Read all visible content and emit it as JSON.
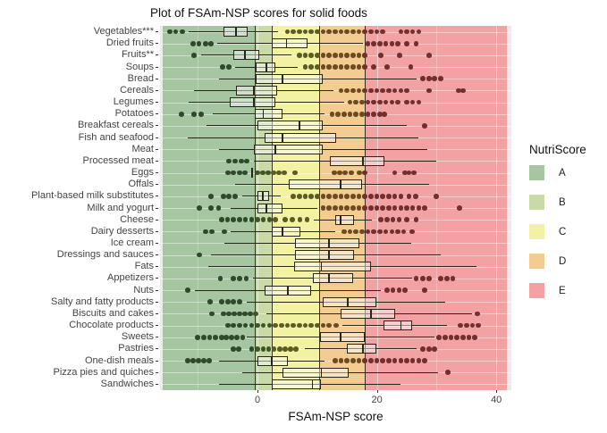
{
  "title": "Plot of FSAm-NSP scores for solid foods",
  "x_axis": {
    "label": "FSAm-NSP score",
    "ticks": [
      0,
      20,
      40
    ],
    "range": [
      -16.3,
      42.5
    ]
  },
  "legend": {
    "title": "NutriScore",
    "items": [
      {
        "label": "A",
        "color": "#a5c6a0"
      },
      {
        "label": "B",
        "color": "#c8dba6"
      },
      {
        "label": "C",
        "color": "#f2f2a2"
      },
      {
        "label": "D",
        "color": "#f2cc90"
      },
      {
        "label": "E",
        "color": "#f2a2a2"
      }
    ]
  },
  "bands": [
    {
      "grade": "A",
      "from": -15.9,
      "to": -0.52,
      "color": "#a5c6a0"
    },
    {
      "grade": "B",
      "from": -0.52,
      "to": 2.4,
      "color": "#c8dba6"
    },
    {
      "grade": "C",
      "from": 2.4,
      "to": 10.33,
      "color": "#f2f2a2"
    },
    {
      "grade": "D",
      "from": 10.33,
      "to": 17.96,
      "color": "#f2cc90"
    },
    {
      "grade": "E",
      "from": 17.96,
      "to": 41.77,
      "color": "#f2a2a2"
    }
  ],
  "dot_colors": {
    "A": "#2f4a2a",
    "B": "#3f5526",
    "C": "#5c5b22",
    "D": "#6d4a1f",
    "E": "#742f2c"
  },
  "chart_data": {
    "type": "boxplot-horizontal",
    "title": "Plot of FSAm-NSP scores for solid foods",
    "xlabel": "FSAm-NSP score",
    "xlim": [
      -16.3,
      42.5
    ],
    "grid": true,
    "legend_position": "right",
    "categories": [
      {
        "label": "Vegetables***",
        "box": [
          -11.5,
          -5.7,
          -3.6,
          -1.6,
          3.4
        ],
        "outliers": [
          -14.7,
          -13.7,
          -12.6,
          5,
          6,
          7,
          8,
          9,
          10,
          11,
          12,
          13,
          14,
          15,
          16,
          17,
          18,
          19,
          20,
          21,
          24,
          25,
          26,
          27
        ]
      },
      {
        "label": "Dried fruits",
        "box": [
          -6.7,
          2.4,
          4.9,
          8.4,
          17.7
        ],
        "outliers": [
          -10.8,
          -9.8,
          -8.7,
          -7.8,
          18.5,
          19.5,
          20.5,
          21.5,
          22.5,
          23.5,
          25,
          26.6
        ]
      },
      {
        "label": "Fruits**",
        "box": [
          -9.4,
          -4.0,
          -2.1,
          0.3,
          5.7
        ],
        "outliers": [
          -10.6,
          7,
          8,
          9,
          10,
          11,
          12,
          13,
          14,
          15,
          16,
          17,
          18,
          20.7,
          23.8,
          28.7
        ]
      },
      {
        "label": "Soups",
        "box": [
          -3.7,
          -0.3,
          1.5,
          3.0,
          6.7
        ],
        "outliers": [
          -5.8,
          -4.8,
          8,
          9,
          10,
          11,
          12,
          13,
          14,
          15,
          16,
          17,
          18,
          19.5,
          21.7,
          25.7
        ]
      },
      {
        "label": "Bread",
        "box": [
          -6.4,
          -0.3,
          4.2,
          10.9,
          26.6
        ],
        "outliers": [
          27.7,
          28.7,
          29.6,
          30.7
        ]
      },
      {
        "label": "Cereals",
        "box": [
          -10.6,
          -3.6,
          -0.6,
          3.3,
          12.7
        ],
        "outliers": [
          14,
          15,
          16,
          17,
          18,
          19,
          20,
          21,
          22,
          23,
          24,
          25,
          28.7,
          33.7,
          34.4
        ]
      },
      {
        "label": "Legumes",
        "box": [
          -11.5,
          -4.6,
          -0.6,
          3.0,
          14.5
        ],
        "outliers": [
          15.5,
          16.5,
          17.5,
          18.5,
          19.5,
          20.5,
          21.5,
          22.5,
          23.5,
          25,
          26,
          27
        ]
      },
      {
        "label": "Potatoes",
        "box": [
          -7.5,
          -0.4,
          1.0,
          4.2,
          11.2
        ],
        "outliers": [
          -12.7,
          -10.6,
          -9.4,
          12.5,
          13.5,
          14.5,
          15.5,
          16.5,
          17.5,
          18.5,
          19.5,
          20.5,
          21.3
        ]
      },
      {
        "label": "Breakfast cereals",
        "box": [
          -8.5,
          0.0,
          7.0,
          10.9,
          25.0
        ],
        "outliers": [
          28.0
        ]
      },
      {
        "label": "Fish and seafood",
        "box": [
          -11.7,
          1.2,
          4.2,
          13.2,
          26.9
        ],
        "outliers": []
      },
      {
        "label": "Meat",
        "box": [
          -6.4,
          -0.6,
          3.0,
          10.9,
          28.5
        ],
        "outliers": []
      },
      {
        "label": "Processed meat",
        "box": [
          -0.6,
          12.1,
          17.7,
          21.3,
          29.9
        ],
        "outliers": [
          -4.8,
          -3.7,
          -2.7,
          -1.8
        ]
      },
      {
        "label": "Eggs",
        "box": [
          -1.0,
          -1.0,
          -1.0,
          -1.0,
          -1.0
        ],
        "outliers": [
          -4.9,
          -4.0,
          -3.0,
          -2.1,
          0,
          0.9,
          1.8,
          2.7,
          3.6,
          4.5,
          6.3,
          12.9,
          13.8,
          14.7,
          15.7,
          17.1,
          18.0,
          23.0,
          24.7,
          25.4,
          26.2
        ]
      },
      {
        "label": "Offals",
        "box": [
          -3.7,
          5.2,
          13.9,
          17.5,
          28.7
        ],
        "outliers": []
      },
      {
        "label": "Plant-based milk substitutes",
        "box": [
          -2.5,
          0.0,
          0.9,
          1.9,
          3.9
        ],
        "outliers": [
          -7.8,
          -5.7,
          -4.8,
          -3.7,
          6,
          7,
          8,
          9,
          10,
          11,
          12,
          13,
          14,
          15,
          16,
          17,
          18,
          19,
          20,
          21,
          22,
          23,
          24,
          25.4,
          26.5,
          29.9
        ]
      },
      {
        "label": "Milk and yogurt",
        "box": [
          -4.5,
          0.0,
          1.5,
          4.2,
          10.0
        ],
        "outliers": [
          -9.7,
          -7.8,
          -6.5,
          11,
          12,
          13,
          14,
          15,
          16,
          17,
          18,
          19,
          20,
          21,
          22,
          23,
          24,
          25,
          26,
          27,
          28,
          33.8
        ]
      },
      {
        "label": "Cheese",
        "box": [
          9.4,
          13.0,
          13.9,
          16.2,
          19.2
        ],
        "outliers": [
          -6,
          -5,
          -4,
          -3,
          -2,
          -1,
          0,
          1,
          2,
          3,
          4.6,
          5.8,
          7.1,
          8.3,
          20.7,
          21.7,
          22.7,
          23.7,
          25.0,
          26.6
        ]
      },
      {
        "label": "Dairy desserts",
        "box": [
          -4.5,
          2.4,
          4.2,
          7.2,
          13.0
        ],
        "outliers": [
          -8.7,
          -7.6,
          -5.5,
          14.5,
          15.5,
          16.5,
          17.5,
          18.5,
          19.5,
          20.5,
          21.5,
          22.5,
          23.5,
          24.5,
          25.9
        ]
      },
      {
        "label": "Ice cream",
        "box": [
          -5.5,
          6.3,
          12.0,
          17.1,
          25.7
        ],
        "outliers": []
      },
      {
        "label": "Dressings and sauces",
        "box": [
          -7.8,
          6.3,
          12.0,
          16.2,
          30.7
        ],
        "outliers": [
          -9.7
        ]
      },
      {
        "label": "Fats",
        "box": [
          -8.2,
          6.1,
          10.7,
          19.0,
          36.7
        ],
        "outliers": []
      },
      {
        "label": "Appetizers",
        "box": [
          -0.7,
          9.3,
          12.0,
          16.0,
          25.9
        ],
        "outliers": [
          -6.2,
          -4.0,
          -3.0,
          -1.9,
          26.6,
          27.7,
          28.7,
          30.7,
          31.7,
          32.7
        ]
      },
      {
        "label": "Nuts",
        "box": [
          -10.5,
          1.2,
          5.1,
          9.0,
          20.7
        ],
        "outliers": [
          -11.7,
          21.7,
          22.7,
          23.7,
          24.7,
          28.0
        ]
      },
      {
        "label": "Salty and fatty products",
        "box": [
          -1.8,
          10.9,
          15.1,
          19.9,
          31.4
        ],
        "outliers": [
          -7.9,
          -6.0,
          -4.9,
          -4.0,
          -3.0
        ]
      },
      {
        "label": "Biscuits and cakes",
        "box": [
          1.5,
          13.9,
          19.0,
          23.1,
          35.9
        ],
        "outliers": [
          -7.6,
          -5.7,
          -4.8,
          -3.9,
          -3.0,
          -2.1,
          -1.2,
          -0.3,
          36.8
        ]
      },
      {
        "label": "Chocolate products",
        "box": [
          14.2,
          21.1,
          24.0,
          25.9,
          31.7
        ],
        "outliers": [
          -4.9,
          -4,
          -3,
          -2,
          -1,
          0,
          1,
          2,
          3,
          4,
          5,
          6,
          7,
          8,
          9,
          10,
          11,
          12,
          13.2,
          34,
          35,
          36,
          37
        ]
      },
      {
        "label": "Sweets",
        "box": [
          -1.8,
          10.5,
          13.9,
          18.0,
          29.6
        ],
        "outliers": [
          -10,
          -9,
          -8,
          -7,
          -6,
          -5.2,
          -4.3,
          -3.4,
          -2.5,
          30.4,
          31.4,
          32.4,
          33.4,
          34.4,
          35.4,
          36.4
        ]
      },
      {
        "label": "Pastries",
        "box": [
          8.0,
          15.0,
          17.7,
          19.9,
          26.6
        ],
        "outliers": [
          -4.0,
          -3.1,
          -1,
          0,
          1,
          1.9,
          2.8,
          3.7,
          4.6,
          5.5,
          6.4,
          27.7,
          28.7,
          29.6
        ]
      },
      {
        "label": "One-dish meals",
        "box": [
          -6.4,
          0.0,
          2.4,
          5.1,
          11.2
        ],
        "outliers": [
          -11.7,
          -10.8,
          -9.9,
          -9.0,
          -8.1,
          13,
          14,
          15,
          16,
          17,
          18,
          19,
          20,
          21,
          22,
          23,
          24,
          25,
          26,
          27,
          28
        ]
      },
      {
        "label": "Pizza pies and quiches",
        "box": [
          -2.5,
          4.2,
          10.7,
          15.2,
          30.2
        ],
        "outliers": [
          31.9
        ]
      },
      {
        "label": "Sandwiches",
        "box": [
          -6.4,
          2.4,
          9.2,
          10.7,
          24.0
        ],
        "outliers": []
      }
    ]
  }
}
